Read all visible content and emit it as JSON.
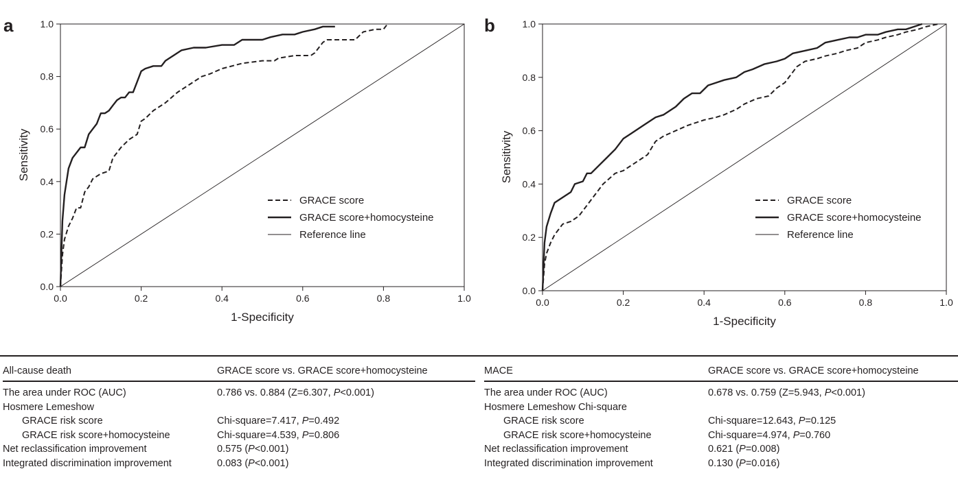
{
  "colors": {
    "ink": "#231f20",
    "background": "#ffffff"
  },
  "chart_data": [
    {
      "panel": "a",
      "type": "line",
      "xlabel": "1-Specificity",
      "ylabel": "Sensitivity",
      "xlim": [
        0,
        1
      ],
      "ylim": [
        0,
        1
      ],
      "xticks": [
        "0.0",
        "0.2",
        "0.4",
        "0.6",
        "0.8",
        "1.0"
      ],
      "yticks": [
        "0.0",
        "0.2",
        "0.4",
        "0.6",
        "0.8",
        "1.0"
      ],
      "legend_position": "lower-right",
      "series": [
        {
          "name": "GRACE score",
          "style": "dashed",
          "x": [
            0,
            0.005,
            0.01,
            0.02,
            0.03,
            0.04,
            0.05,
            0.06,
            0.07,
            0.08,
            0.09,
            0.1,
            0.12,
            0.13,
            0.14,
            0.15,
            0.17,
            0.19,
            0.2,
            0.21,
            0.23,
            0.26,
            0.29,
            0.32,
            0.35,
            0.37,
            0.4,
            0.45,
            0.5,
            0.53,
            0.54,
            0.58,
            0.62,
            0.63,
            0.65,
            0.66,
            0.7,
            0.73,
            0.75,
            0.78,
            0.8,
            0.81
          ],
          "y": [
            0,
            0.12,
            0.18,
            0.23,
            0.26,
            0.3,
            0.3,
            0.36,
            0.38,
            0.41,
            0.42,
            0.43,
            0.44,
            0.49,
            0.51,
            0.53,
            0.56,
            0.58,
            0.63,
            0.64,
            0.67,
            0.7,
            0.74,
            0.77,
            0.8,
            0.81,
            0.83,
            0.85,
            0.86,
            0.86,
            0.87,
            0.88,
            0.88,
            0.89,
            0.93,
            0.94,
            0.94,
            0.94,
            0.97,
            0.98,
            0.98,
            1.0
          ]
        },
        {
          "name": "GRACE score+homocysteine",
          "style": "solid",
          "x": [
            0,
            0.005,
            0.01,
            0.02,
            0.03,
            0.05,
            0.06,
            0.07,
            0.08,
            0.09,
            0.1,
            0.11,
            0.12,
            0.13,
            0.14,
            0.15,
            0.16,
            0.17,
            0.18,
            0.19,
            0.2,
            0.21,
            0.23,
            0.25,
            0.26,
            0.27,
            0.3,
            0.33,
            0.36,
            0.4,
            0.43,
            0.45,
            0.5,
            0.52,
            0.55,
            0.58,
            0.6,
            0.63,
            0.65,
            0.68
          ],
          "y": [
            0,
            0.25,
            0.35,
            0.45,
            0.49,
            0.53,
            0.53,
            0.58,
            0.6,
            0.62,
            0.66,
            0.66,
            0.67,
            0.69,
            0.71,
            0.72,
            0.72,
            0.74,
            0.74,
            0.78,
            0.82,
            0.83,
            0.84,
            0.84,
            0.86,
            0.87,
            0.9,
            0.91,
            0.91,
            0.92,
            0.92,
            0.94,
            0.94,
            0.95,
            0.96,
            0.96,
            0.97,
            0.98,
            0.99,
            0.99
          ]
        },
        {
          "name": "Reference line",
          "style": "thin",
          "x": [
            0,
            1
          ],
          "y": [
            0,
            1
          ]
        }
      ]
    },
    {
      "panel": "b",
      "type": "line",
      "xlabel": "1-Specificity",
      "ylabel": "Sensitivity",
      "xlim": [
        0,
        1
      ],
      "ylim": [
        0,
        1
      ],
      "xticks": [
        "0.0",
        "0.2",
        "0.4",
        "0.6",
        "0.8",
        "1.0"
      ],
      "yticks": [
        "0.0",
        "0.2",
        "0.4",
        "0.6",
        "0.8",
        "1.0"
      ],
      "legend_position": "lower-right",
      "series": [
        {
          "name": "GRACE score",
          "style": "dashed",
          "x": [
            0,
            0.005,
            0.01,
            0.02,
            0.03,
            0.05,
            0.07,
            0.09,
            0.11,
            0.13,
            0.15,
            0.18,
            0.2,
            0.23,
            0.26,
            0.28,
            0.3,
            0.33,
            0.36,
            0.38,
            0.4,
            0.43,
            0.45,
            0.48,
            0.5,
            0.53,
            0.56,
            0.58,
            0.6,
            0.63,
            0.65,
            0.68,
            0.7,
            0.73,
            0.75,
            0.78,
            0.8,
            0.83,
            0.85,
            0.88,
            0.9,
            0.93,
            0.95,
            0.98
          ],
          "y": [
            0,
            0.1,
            0.14,
            0.18,
            0.21,
            0.25,
            0.26,
            0.28,
            0.32,
            0.36,
            0.4,
            0.44,
            0.45,
            0.48,
            0.51,
            0.56,
            0.58,
            0.6,
            0.62,
            0.63,
            0.64,
            0.65,
            0.66,
            0.68,
            0.7,
            0.72,
            0.73,
            0.76,
            0.78,
            0.84,
            0.86,
            0.87,
            0.88,
            0.89,
            0.9,
            0.91,
            0.93,
            0.94,
            0.95,
            0.96,
            0.97,
            0.98,
            0.99,
            1.0
          ]
        },
        {
          "name": "GRACE score+homocysteine",
          "style": "solid",
          "x": [
            0,
            0.005,
            0.01,
            0.02,
            0.03,
            0.05,
            0.07,
            0.08,
            0.1,
            0.11,
            0.12,
            0.14,
            0.16,
            0.18,
            0.2,
            0.22,
            0.25,
            0.28,
            0.3,
            0.33,
            0.35,
            0.37,
            0.39,
            0.41,
            0.43,
            0.45,
            0.48,
            0.5,
            0.52,
            0.55,
            0.58,
            0.6,
            0.62,
            0.65,
            0.68,
            0.7,
            0.73,
            0.76,
            0.78,
            0.8,
            0.83,
            0.85,
            0.88,
            0.9,
            0.92,
            0.94
          ],
          "y": [
            0,
            0.18,
            0.24,
            0.29,
            0.33,
            0.35,
            0.37,
            0.4,
            0.41,
            0.44,
            0.44,
            0.47,
            0.5,
            0.53,
            0.57,
            0.59,
            0.62,
            0.65,
            0.66,
            0.69,
            0.72,
            0.74,
            0.74,
            0.77,
            0.78,
            0.79,
            0.8,
            0.82,
            0.83,
            0.85,
            0.86,
            0.87,
            0.89,
            0.9,
            0.91,
            0.93,
            0.94,
            0.95,
            0.95,
            0.96,
            0.96,
            0.97,
            0.98,
            0.98,
            0.99,
            1.0
          ]
        },
        {
          "name": "Reference line",
          "style": "thin",
          "x": [
            0,
            1
          ],
          "y": [
            0,
            1
          ]
        }
      ]
    }
  ],
  "table_a": {
    "header_left": "All-cause death",
    "header_right": "GRACE score vs. GRACE score+homocysteine",
    "rows": [
      {
        "label": "The area under ROC (AUC)",
        "value": "0.786 vs. 0.884 (Z=6.307, P<0.001)"
      },
      {
        "label": "Hosmere Lemeshow",
        "value": ""
      },
      {
        "label": "GRACE risk score",
        "value": "Chi-square=7.417, P=0.492"
      },
      {
        "label": "GRACE risk score+homocysteine",
        "value": "Chi-square=4.539, P=0.806"
      },
      {
        "label": "Net reclassification improvement",
        "value": "0.575 (P<0.001)"
      },
      {
        "label": "Integrated discrimination improvement",
        "value": "0.083 (P<0.001)"
      }
    ]
  },
  "table_b": {
    "header_left": "MACE",
    "header_right": "GRACE score vs. GRACE score+homocysteine",
    "rows": [
      {
        "label": "The area under ROC (AUC)",
        "value": "0.678 vs. 0.759 (Z=5.943, P<0.001)"
      },
      {
        "label": "Hosmere Lemeshow Chi-square",
        "value": ""
      },
      {
        "label": "GRACE risk score",
        "value": "Chi-square=12.643, P=0.125"
      },
      {
        "label": "GRACE risk score+homocysteine",
        "value": "Chi-square=4.974, P=0.760"
      },
      {
        "label": "Net reclassification improvement",
        "value": "0.621 (P=0.008)"
      },
      {
        "label": "Integrated discrimination improvement",
        "value": "0.130 (P=0.016)"
      }
    ]
  }
}
